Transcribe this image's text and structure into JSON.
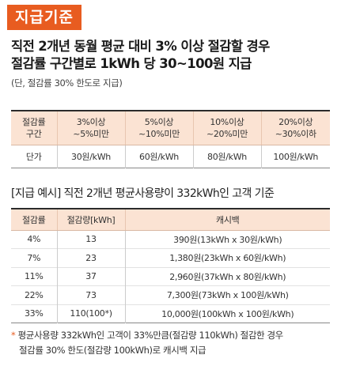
{
  "badge": "지급기준",
  "headline": {
    "line1": "직전 2개년 동월 평균 대비 3% 이상 절감할 경우",
    "line2": "절감률 구간별로 1kWh 당 30~100원 지급"
  },
  "note": "(단, 절감률 30% 한도로 지급)",
  "rate_table": {
    "row_header_line1": "절감률",
    "row_header_line2": "구간",
    "ranges": [
      {
        "line1": "3%이상",
        "line2": "~5%미만"
      },
      {
        "line1": "5%이상",
        "line2": "~10%미만"
      },
      {
        "line1": "10%이상",
        "line2": "~20%미만"
      },
      {
        "line1": "20%이상",
        "line2": "~30%이하"
      }
    ],
    "price_label": "단가",
    "prices": [
      "30원/kWh",
      "60원/kWh",
      "80원/kWh",
      "100원/kWh"
    ]
  },
  "example": {
    "title": "[지급 예시] 직전 2개년 평균사용량이 332kWh인 고객 기준",
    "headers": [
      "절감률",
      "절감량[kWh]",
      "캐시백"
    ],
    "rows": [
      [
        "4%",
        "13",
        "390원(13kWh x 30원/kWh)"
      ],
      [
        "7%",
        "23",
        "1,380원(23kWh x 60원/kWh)"
      ],
      [
        "11%",
        "37",
        "2,960원(37kWh x 80원/kWh)"
      ],
      [
        "22%",
        "73",
        "7,300원(73kWh x 100원/kWh)"
      ],
      [
        "33%",
        "110(100*)",
        "10,000원(100kWh x 100원/kWh)"
      ]
    ]
  },
  "footnote": {
    "star": "*",
    "line1": " 평균사용량 332kWh인 고객이 33%만큼(절감량 110kWh) 절감한 경우",
    "line2": "절감률 30% 한도(절감량 100kWh)로 캐시백 지급"
  },
  "colors": {
    "accent": "#e85c20",
    "header_fill": "#fbe3d3"
  }
}
